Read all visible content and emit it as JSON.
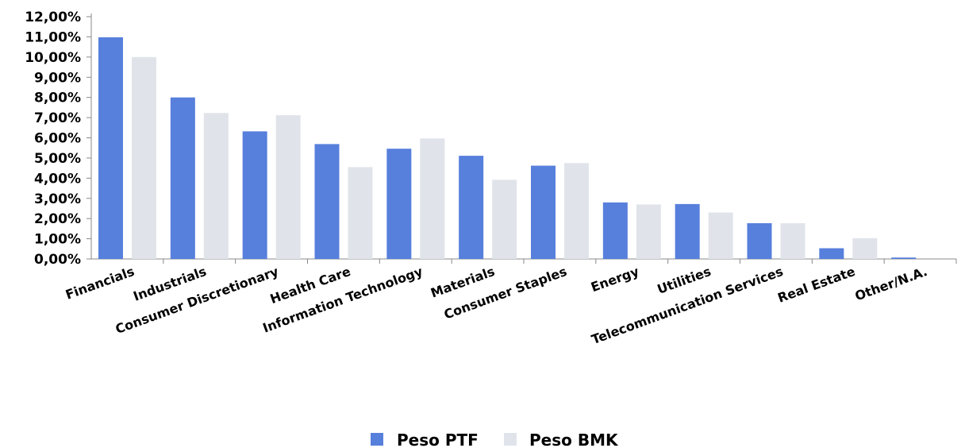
{
  "chart_data": {
    "type": "bar",
    "categories": [
      "Financials",
      "Industrials",
      "Consumer Discretionary",
      "Health Care",
      "Information Technology",
      "Materials",
      "Consumer Staples",
      "Energy",
      "Utilities",
      "Telecommunication Services",
      "Real Estate",
      "Other/N.A."
    ],
    "series": [
      {
        "name": "Peso PTF",
        "color": "#577fdc",
        "values": [
          10.98,
          8.0,
          6.32,
          5.69,
          5.46,
          5.11,
          4.62,
          2.8,
          2.72,
          1.77,
          0.53,
          0.07
        ]
      },
      {
        "name": "Peso BMK",
        "color": "#e0e4ea",
        "values": [
          10.0,
          7.23,
          7.12,
          4.55,
          5.97,
          3.92,
          4.75,
          2.7,
          2.3,
          1.77,
          1.03,
          0.0
        ]
      }
    ],
    "ylim": [
      0,
      12
    ],
    "yticks": [
      0,
      1,
      2,
      3,
      4,
      5,
      6,
      7,
      8,
      9,
      10,
      11,
      12
    ],
    "ytick_labels": [
      "0,00%",
      "1,00%",
      "2,00%",
      "3,00%",
      "4,00%",
      "5,00%",
      "6,00%",
      "7,00%",
      "8,00%",
      "9,00%",
      "10,00%",
      "11,00%",
      "12,00%"
    ],
    "legend_position": "bottom-center",
    "grid": false
  }
}
